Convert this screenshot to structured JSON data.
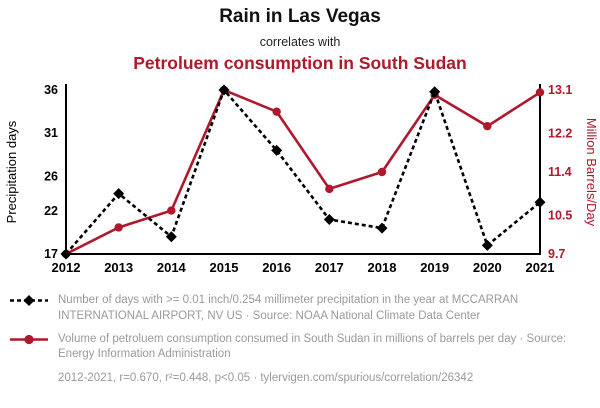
{
  "header": {
    "title": "Rain in Las Vegas",
    "subtitle": "correlates with",
    "correlate_title": "Petroluem consumption in South Sudan"
  },
  "colors": {
    "accent_red": "#b0182b",
    "series_black": "#000000",
    "legend_text_gray": "#9a9a9a"
  },
  "chart_data": {
    "type": "line",
    "x": [
      2012,
      2013,
      2014,
      2015,
      2016,
      2017,
      2018,
      2019,
      2020,
      2021
    ],
    "series": [
      {
        "name": "precipitation-days",
        "axis": "left",
        "color": "#000000",
        "style": "dashed",
        "marker": "diamond",
        "values": [
          17,
          24,
          19,
          36,
          29,
          21,
          20,
          35.8,
          18,
          23
        ]
      },
      {
        "name": "petroleum-consumption",
        "axis": "right",
        "color": "#b0182b",
        "style": "solid",
        "marker": "circle",
        "values": [
          9.7,
          10.25,
          10.6,
          13.1,
          12.65,
          11.05,
          11.4,
          13.0,
          12.35,
          13.05
        ]
      }
    ],
    "left_axis": {
      "label": "Precipitation days",
      "min": 17,
      "max": 36,
      "ticks": [
        17,
        22,
        26,
        31,
        36
      ]
    },
    "right_axis": {
      "label": "Million Barrels/Day",
      "min": 9.7,
      "max": 13.1,
      "ticks": [
        9.7,
        10.5,
        11.4,
        12.2,
        13.1
      ]
    },
    "grid": false,
    "legend_position": "below"
  },
  "legend": {
    "items": [
      {
        "text": "Number of days with >= 0.01 inch/0.254 millimeter precipitation in the year at MCCARRAN INTERNATIONAL AIRPORT, NV US · Source: NOAA National Climate Data Center"
      },
      {
        "text": "Volume of petroluem consumption consumed in South Sudan in millions of barrels per day · Source: Energy Information Administration"
      }
    ],
    "footnote": "2012-2021, r=0.670, r²=0.448, p<0.05 · tylervigen.com/spurious/correlation/26342"
  }
}
